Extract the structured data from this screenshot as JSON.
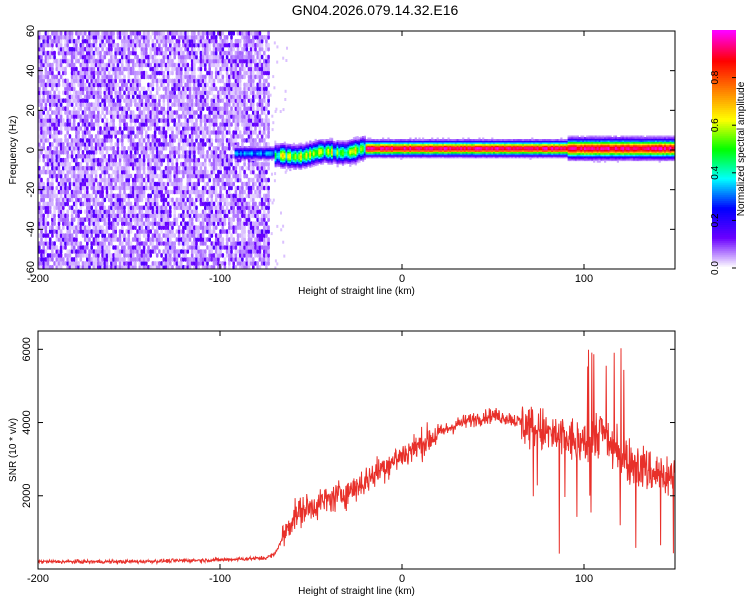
{
  "title": "GN04.2026.079.14.32.E16",
  "chart_data": [
    {
      "type": "heatmap",
      "title": "GN04.2026.079.14.32.E16",
      "xlabel": "Height of straight line (km)",
      "ylabel": "Frequency (Hz)",
      "xlim": [
        -200,
        150
      ],
      "ylim": [
        -60,
        60
      ],
      "x_ticks": [
        -200,
        -100,
        0,
        100
      ],
      "y_ticks": [
        -60,
        -40,
        -20,
        0,
        20,
        40,
        60
      ],
      "x_tick_labels": [
        "-200",
        "-100",
        "0",
        "100"
      ],
      "y_tick_labels": [
        "-60",
        "-40",
        "-20",
        "0",
        "20",
        "40",
        "60"
      ],
      "grid": false,
      "colorbar": {
        "label": "Normalized spectral amplitude",
        "range": [
          0,
          1
        ],
        "ticks": [
          0.0,
          0.2,
          0.4,
          0.6,
          0.8
        ],
        "tick_labels": [
          "0.0",
          "0.2",
          "0.4",
          "0.6",
          "0.8"
        ],
        "colormap": [
          "#ffffff",
          "#6a00ff",
          "#0000ff",
          "#00ffff",
          "#00ff00",
          "#ffff00",
          "#ff8000",
          "#ff0000",
          "#ff00ff"
        ]
      },
      "regions": [
        {
          "x_range": [
            -200,
            -73
          ],
          "f_range": [
            -60,
            60
          ],
          "amplitude_range": [
            0.0,
            0.15
          ],
          "description": "noise"
        },
        {
          "x_range": [
            -90,
            -70
          ],
          "f_center": -2,
          "amplitude_range": [
            0.2,
            0.4
          ]
        },
        {
          "x_range": [
            -70,
            -20
          ],
          "f_center_start": -4,
          "f_center_end": 0,
          "amplitude_range": [
            0.3,
            0.7
          ]
        },
        {
          "x_range": [
            -20,
            150
          ],
          "f_center": 0,
          "amplitude_range": [
            0.8,
            1.0
          ]
        }
      ]
    },
    {
      "type": "line",
      "xlabel": "Height of straight line (km)",
      "ylabel": "SNR (10 * v/v)",
      "xlim": [
        -200,
        150
      ],
      "ylim": [
        0,
        6500
      ],
      "x_ticks": [
        -200,
        -100,
        0,
        100
      ],
      "y_ticks": [
        2000,
        4000,
        6000
      ],
      "x_tick_labels": [
        "-200",
        "-100",
        "0",
        "100"
      ],
      "y_tick_labels": [
        "2000",
        "4000",
        "6000"
      ],
      "grid": false,
      "series": [
        {
          "color": "#e8302a",
          "x": [
            -200,
            -150,
            -100,
            -75,
            -70,
            -65,
            -60,
            -55,
            -50,
            -40,
            -30,
            -20,
            -10,
            0,
            10,
            20,
            30,
            40,
            50,
            60,
            70,
            80,
            90,
            100,
            105,
            110,
            115,
            120,
            125,
            130,
            140,
            150
          ],
          "y": [
            200,
            200,
            250,
            300,
            400,
            900,
            1400,
            1600,
            1700,
            1900,
            2100,
            2400,
            2800,
            3100,
            3400,
            3700,
            3950,
            4100,
            4200,
            4100,
            3900,
            3700,
            3550,
            3400,
            3600,
            3800,
            3400,
            3200,
            3000,
            2800,
            2600,
            2500
          ]
        }
      ]
    }
  ]
}
